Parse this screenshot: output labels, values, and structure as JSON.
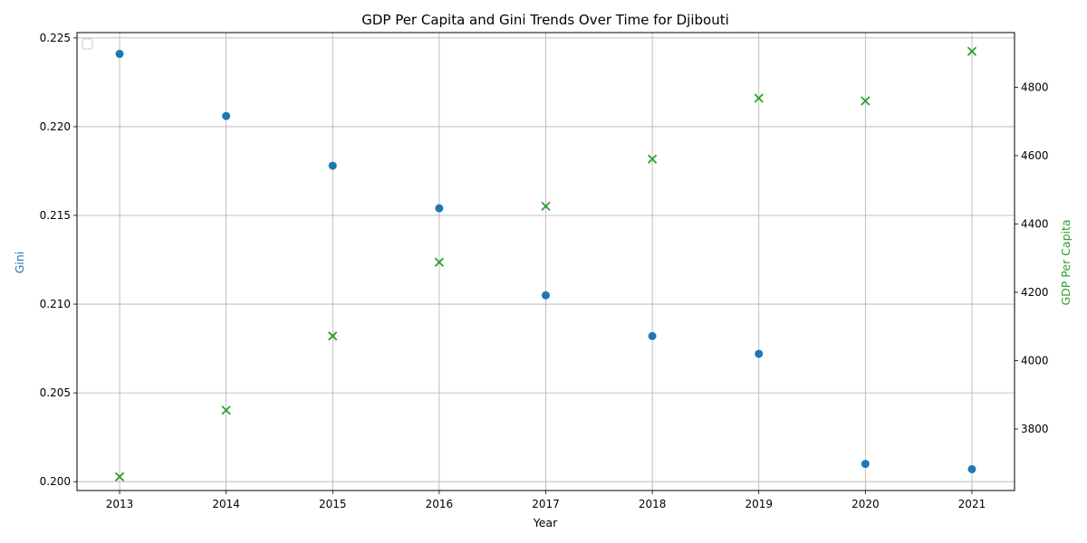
{
  "chart_data": {
    "type": "scatter",
    "title": "GDP Per Capita and Gini Trends Over Time for Djibouti",
    "xlabel": "Year",
    "x": [
      2013,
      2014,
      2015,
      2016,
      2017,
      2018,
      2019,
      2020,
      2021
    ],
    "x_ticks": [
      "2013",
      "2014",
      "2015",
      "2016",
      "2017",
      "2018",
      "2019",
      "2020",
      "2021"
    ],
    "xlim": [
      2012.6,
      2021.4
    ],
    "grid": true,
    "legend": "upper-left (empty)",
    "y_left": {
      "label": "Gini",
      "color": "#1f77b4",
      "marker": "circle",
      "lim": [
        0.1995,
        0.2253
      ],
      "ticks": [
        "0.200",
        "0.205",
        "0.210",
        "0.215",
        "0.220",
        "0.225"
      ],
      "tick_values": [
        0.2,
        0.205,
        0.21,
        0.215,
        0.22,
        0.225
      ],
      "values": [
        0.2241,
        0.2206,
        0.2178,
        0.2154,
        0.2105,
        0.2082,
        0.2072,
        0.201,
        0.2007
      ]
    },
    "y_right": {
      "label": "GDP Per Capita",
      "color": "#2ca02c",
      "marker": "x",
      "lim": [
        3620,
        4960
      ],
      "ticks": [
        "3800",
        "4000",
        "4200",
        "4400",
        "4600",
        "4800"
      ],
      "tick_values": [
        3800,
        4000,
        4200,
        4400,
        4600,
        4800
      ],
      "values": [
        3660,
        3855,
        4072,
        4288,
        4452,
        4590,
        4768,
        4760,
        4905
      ]
    }
  }
}
